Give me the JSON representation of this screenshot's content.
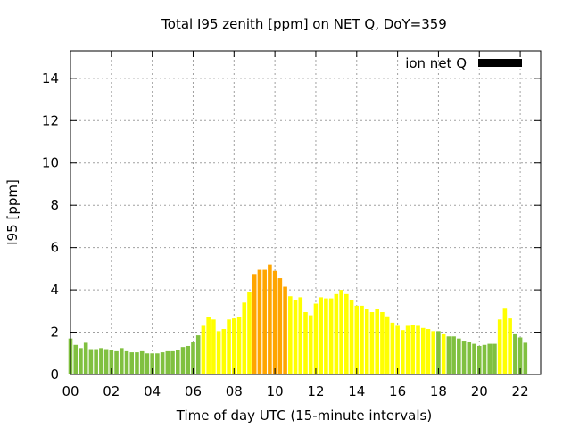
{
  "chart_data": {
    "type": "bar",
    "title": "Total I95 zenith [ppm] on NET Q, DoY=359",
    "xlabel": "Time of day UTC (15-minute intervals)",
    "ylabel": "I95 [ppm]",
    "xlim": [
      0,
      23
    ],
    "ylim": [
      0,
      15.3
    ],
    "xticks": [
      0,
      2,
      4,
      6,
      8,
      10,
      12,
      14,
      16,
      18,
      20,
      22
    ],
    "xtick_labels": [
      "00",
      "02",
      "04",
      "06",
      "08",
      "10",
      "12",
      "14",
      "16",
      "18",
      "20",
      "22"
    ],
    "yticks": [
      0,
      2,
      4,
      6,
      8,
      10,
      12,
      14
    ],
    "ytick_labels": [
      "0",
      "2",
      "4",
      "6",
      "8",
      "10",
      "12",
      "14"
    ],
    "grid": true,
    "bar_interval_hours": 0.25,
    "legend": {
      "label": "ion net Q",
      "color": "#000000",
      "placement": "top-right"
    },
    "colors": {
      "green": "#80c040",
      "yellow": "#ffff00",
      "orange": "#ffa500"
    },
    "series": [
      {
        "x_start": 0,
        "values": [
          1.7,
          1.4,
          1.25,
          1.5,
          1.2,
          1.2,
          1.25,
          1.2,
          1.15,
          1.1,
          1.25,
          1.1,
          1.05,
          1.05,
          1.1,
          1.0,
          1.0,
          1.0,
          1.05,
          1.1,
          1.1,
          1.15,
          1.3,
          1.35,
          1.55,
          1.85,
          2.3,
          2.7,
          2.6,
          2.05,
          2.15,
          2.6,
          2.65,
          2.7,
          3.4,
          3.9,
          4.75,
          4.95,
          4.95,
          5.2,
          4.9,
          4.55,
          4.15,
          3.7,
          3.5,
          3.65,
          2.95,
          2.8,
          3.35,
          3.65,
          3.6,
          3.6,
          3.8,
          4.0,
          3.8,
          3.5,
          3.25,
          3.25,
          3.1,
          2.95,
          3.1,
          2.95,
          2.75,
          2.45,
          2.3,
          2.1,
          2.3,
          2.35,
          2.3,
          2.2,
          2.15,
          2.05,
          2.05,
          1.9,
          1.8,
          1.8,
          1.7,
          1.6,
          1.55,
          1.45,
          1.35,
          1.4,
          1.45,
          1.45,
          2.6,
          3.15,
          2.65,
          1.9,
          1.75,
          1.5
        ],
        "levels": [
          "g",
          "g",
          "g",
          "g",
          "g",
          "g",
          "g",
          "g",
          "g",
          "g",
          "g",
          "g",
          "g",
          "g",
          "g",
          "g",
          "g",
          "g",
          "g",
          "g",
          "g",
          "g",
          "g",
          "g",
          "g",
          "g",
          "y",
          "y",
          "y",
          "y",
          "y",
          "y",
          "y",
          "y",
          "y",
          "y",
          "o",
          "o",
          "o",
          "o",
          "o",
          "o",
          "o",
          "y",
          "y",
          "y",
          "y",
          "y",
          "y",
          "y",
          "y",
          "y",
          "y",
          "y",
          "y",
          "y",
          "y",
          "y",
          "y",
          "y",
          "y",
          "y",
          "y",
          "y",
          "y",
          "y",
          "y",
          "y",
          "y",
          "y",
          "y",
          "y",
          "g",
          "y",
          "g",
          "g",
          "g",
          "g",
          "g",
          "g",
          "g",
          "g",
          "g",
          "g",
          "y",
          "y",
          "y",
          "g",
          "g",
          "g"
        ]
      }
    ]
  }
}
